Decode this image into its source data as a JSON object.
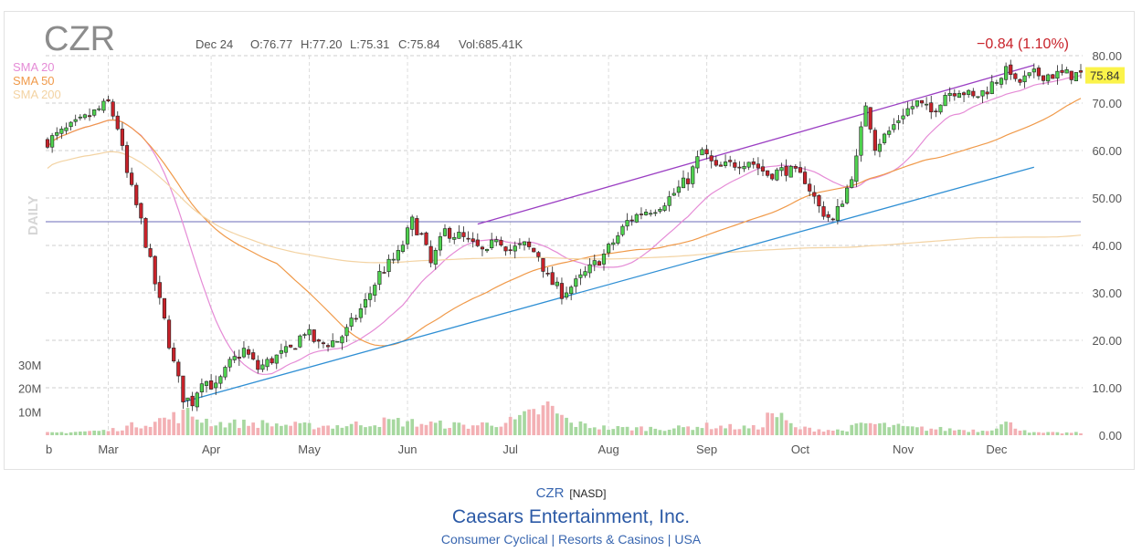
{
  "chart_data": {
    "type": "candlestick",
    "symbol": "CZR",
    "interval_label": "DAILY",
    "ohlc_header": {
      "date": "Dec 24",
      "open": "O:76.77",
      "high": "H:77.20",
      "low": "L:75.31",
      "close": "C:75.84",
      "volume": "Vol:685.41K"
    },
    "change_label": "−0.84 (1.10%)",
    "last_price_label": "75.84",
    "last_price": 75.84,
    "legend": [
      {
        "name": "SMA 20",
        "color": "#e58bd6"
      },
      {
        "name": "SMA 50",
        "color": "#f09a4a"
      },
      {
        "name": "SMA 200",
        "color": "#f3d3a3"
      }
    ],
    "price_axis": {
      "min": 0,
      "max": 80,
      "ticks": [
        "80.00",
        "70.00",
        "60.00",
        "50.00",
        "40.00",
        "30.00",
        "20.00",
        "10.00",
        "0.00"
      ],
      "tick_values": [
        80,
        70,
        60,
        50,
        40,
        30,
        20,
        10,
        0
      ]
    },
    "volume_axis": {
      "ticks": [
        "30M",
        "20M",
        "10M"
      ],
      "tick_values": [
        30000000,
        20000000,
        10000000
      ]
    },
    "months": [
      "b",
      "Mar",
      "Apr",
      "May",
      "Jun",
      "Jul",
      "Aug",
      "Sep",
      "Oct",
      "Nov",
      "Dec"
    ],
    "month_positions": [
      0,
      13,
      35,
      56,
      77,
      99,
      120,
      141,
      161,
      183,
      203
    ],
    "total_bars": 222,
    "price_path": [
      [
        0,
        62
      ],
      [
        7,
        66
      ],
      [
        13,
        70
      ],
      [
        15,
        65
      ],
      [
        17,
        55
      ],
      [
        20,
        45
      ],
      [
        23,
        32
      ],
      [
        25,
        24
      ],
      [
        27,
        15
      ],
      [
        29,
        8
      ],
      [
        31,
        7
      ],
      [
        33,
        12
      ],
      [
        36,
        10
      ],
      [
        39,
        15
      ],
      [
        42,
        18
      ],
      [
        45,
        14
      ],
      [
        48,
        16
      ],
      [
        52,
        18
      ],
      [
        55,
        22
      ],
      [
        58,
        19
      ],
      [
        62,
        20
      ],
      [
        64,
        22
      ],
      [
        68,
        28
      ],
      [
        71,
        34
      ],
      [
        75,
        38
      ],
      [
        78,
        45
      ],
      [
        80,
        42
      ],
      [
        82,
        36
      ],
      [
        85,
        43
      ],
      [
        88,
        42
      ],
      [
        91,
        40
      ],
      [
        94,
        38
      ],
      [
        96,
        42
      ],
      [
        99,
        39
      ],
      [
        102,
        40
      ],
      [
        105,
        38
      ],
      [
        107,
        33
      ],
      [
        110,
        30
      ],
      [
        113,
        32
      ],
      [
        116,
        35
      ],
      [
        119,
        38
      ],
      [
        122,
        42
      ],
      [
        124,
        45
      ],
      [
        127,
        47
      ],
      [
        130,
        48
      ],
      [
        133,
        50
      ],
      [
        137,
        54
      ],
      [
        140,
        60
      ],
      [
        143,
        56
      ],
      [
        146,
        57
      ],
      [
        150,
        58
      ],
      [
        154,
        55
      ],
      [
        158,
        56
      ],
      [
        162,
        54
      ],
      [
        165,
        48
      ],
      [
        168,
        45
      ],
      [
        171,
        52
      ],
      [
        173,
        58
      ],
      [
        175,
        70
      ],
      [
        177,
        61
      ],
      [
        180,
        64
      ],
      [
        183,
        68
      ],
      [
        186,
        70
      ],
      [
        189,
        68
      ],
      [
        192,
        72
      ],
      [
        195,
        73
      ],
      [
        198,
        71
      ],
      [
        201,
        73
      ],
      [
        204,
        76
      ],
      [
        206,
        77
      ],
      [
        207,
        74
      ],
      [
        209,
        75
      ],
      [
        211,
        76
      ]
    ],
    "volume_path": [
      [
        0,
        1
      ],
      [
        13,
        2
      ],
      [
        23,
        6
      ],
      [
        30,
        9
      ],
      [
        36,
        5
      ],
      [
        45,
        5
      ],
      [
        55,
        4
      ],
      [
        63,
        4
      ],
      [
        68,
        5
      ],
      [
        74,
        6
      ],
      [
        80,
        5
      ],
      [
        90,
        4
      ],
      [
        100,
        6
      ],
      [
        107,
        12
      ],
      [
        112,
        5
      ],
      [
        120,
        3
      ],
      [
        135,
        3
      ],
      [
        140,
        4
      ],
      [
        152,
        3
      ],
      [
        155,
        10
      ],
      [
        160,
        3
      ],
      [
        170,
        2
      ],
      [
        175,
        5
      ],
      [
        185,
        3
      ],
      [
        200,
        2
      ],
      [
        205,
        5
      ],
      [
        211,
        1
      ]
    ],
    "trendlines": [
      {
        "name": "support",
        "color": "#2f8fd4",
        "from": {
          "bar": 29,
          "price": 7
        },
        "to": {
          "bar": 211,
          "price": 56.5
        }
      },
      {
        "name": "resistance",
        "color": "#9b3fc3",
        "from": {
          "bar": 92,
          "price": 44.5
        },
        "to": {
          "bar": 211,
          "price": 78
        }
      }
    ],
    "horizontal_line": {
      "name": "level",
      "color": "#6b6bb8",
      "price": 45
    }
  },
  "footer": {
    "ticker": "CZR",
    "exchange": "[NASD]",
    "company": "Caesars Entertainment, Inc.",
    "sector": "Consumer Cyclical | Resorts & Casinos | USA"
  }
}
